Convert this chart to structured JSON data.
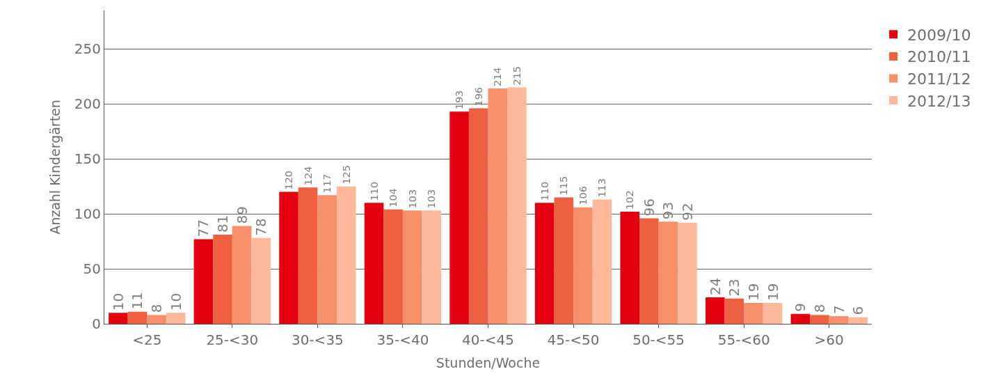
{
  "chart_data": {
    "type": "bar",
    "xlabel": "Stunden/Woche",
    "ylabel": "Anzahl Kindergärten",
    "categories": [
      "<25",
      "25-<30",
      "30-<35",
      "35-<40",
      "40-<45",
      "45-<50",
      "50-<55",
      "55-<60",
      ">60"
    ],
    "series": [
      {
        "name": "2009/10",
        "color": "#e3000f",
        "values": [
          10,
          77,
          120,
          110,
          193,
          110,
          102,
          24,
          9
        ]
      },
      {
        "name": "2010/11",
        "color": "#ef6040",
        "values": [
          11,
          81,
          124,
          104,
          196,
          115,
          96,
          23,
          8
        ]
      },
      {
        "name": "2011/12",
        "color": "#f7906a",
        "values": [
          8,
          89,
          117,
          103,
          214,
          106,
          93,
          19,
          7
        ]
      },
      {
        "name": "2012/13",
        "color": "#fdb99a",
        "values": [
          10,
          78,
          125,
          103,
          215,
          113,
          92,
          19,
          6
        ]
      }
    ],
    "ylim": [
      0,
      285
    ],
    "yticks": [
      0,
      50,
      100,
      150,
      200,
      250
    ],
    "grid": "y",
    "legend": "top right",
    "data_labels": true
  }
}
